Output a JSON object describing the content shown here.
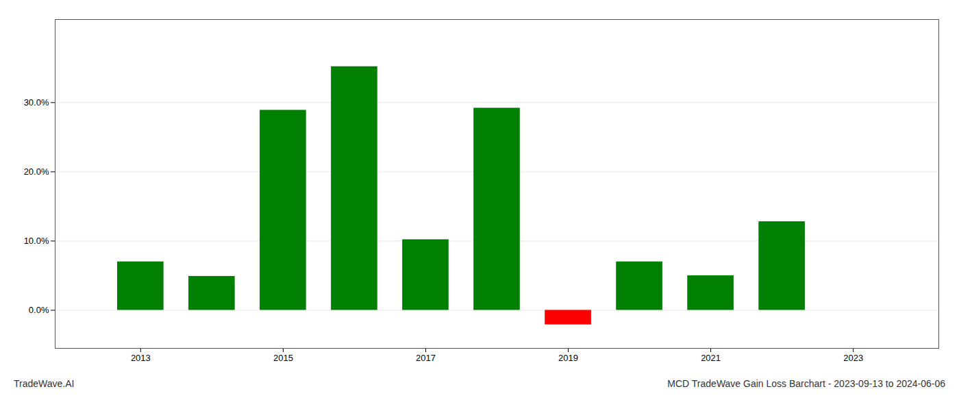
{
  "chart_data": {
    "type": "bar",
    "x": [
      2013,
      2014,
      2015,
      2016,
      2017,
      2018,
      2019,
      2020,
      2021,
      2022
    ],
    "values": [
      0.07,
      0.049,
      0.289,
      0.352,
      0.102,
      0.292,
      -0.021,
      0.07,
      0.05,
      0.128
    ],
    "colors": [
      "#008000",
      "#008000",
      "#008000",
      "#008000",
      "#008000",
      "#008000",
      "#ff0000",
      "#008000",
      "#008000",
      "#008000"
    ],
    "xlim": [
      2011.8,
      2024.2
    ],
    "xticks": [
      2013,
      2015,
      2017,
      2019,
      2021,
      2023
    ],
    "ylim": [
      -0.055,
      0.42
    ],
    "yticks": [
      {
        "value": 0.0,
        "label": "0.0%"
      },
      {
        "value": 0.1,
        "label": "10.0%"
      },
      {
        "value": 0.2,
        "label": "20.0%"
      },
      {
        "value": 0.3,
        "label": "30.0%"
      }
    ],
    "grid": true,
    "annotations": [
      "TradeWave.AI",
      "MCD TradeWave Gain Loss Barchart - 2023-09-13 to 2024-06-06"
    ]
  }
}
